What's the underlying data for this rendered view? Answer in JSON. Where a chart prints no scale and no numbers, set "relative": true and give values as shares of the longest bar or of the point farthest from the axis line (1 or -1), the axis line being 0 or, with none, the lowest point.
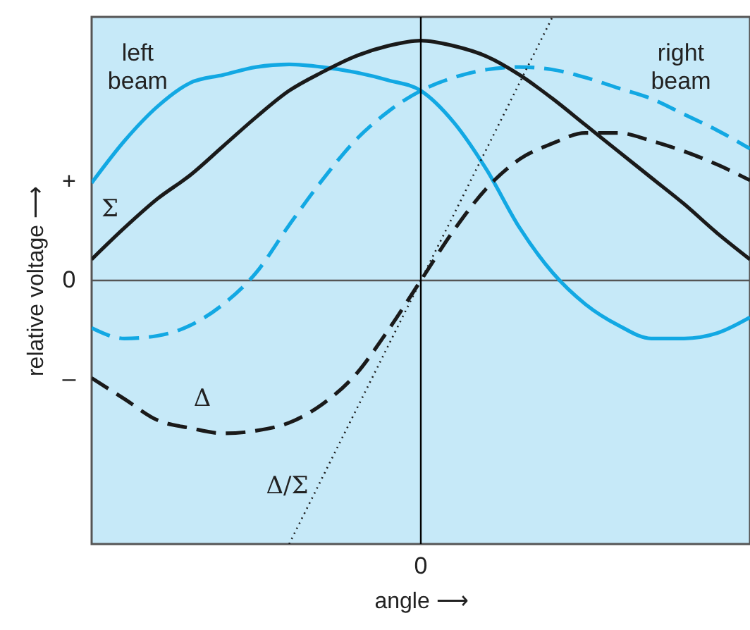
{
  "chart_data": {
    "type": "line",
    "relative": true,
    "xlabel": "angle ⟶",
    "ylabel": "relative voltage ⟶",
    "grid": false,
    "legend": false,
    "categories": [
      null,
      null,
      null,
      null,
      null,
      null,
      null,
      null,
      null,
      null,
      null,
      null,
      null,
      null,
      null,
      null,
      null,
      null,
      null,
      null,
      null
    ],
    "annotations": [
      "+",
      "0",
      "–",
      "0"
    ],
    "series": [
      {
        "name": "left beam",
        "color": "#12a8e3",
        "line_style": "solid",
        "values": [
          0.37,
          0.53,
          0.66,
          0.75,
          0.78,
          0.81,
          0.82,
          0.81,
          0.79,
          0.76,
          0.72,
          0.6,
          0.42,
          0.2,
          0.03,
          -0.09,
          -0.17,
          -0.22,
          -0.22,
          -0.2,
          -0.14
        ]
      },
      {
        "name": "right beam",
        "color": "#12a8e3",
        "line_style": "dashed",
        "values": [
          -0.18,
          -0.22,
          -0.21,
          -0.17,
          -0.09,
          0.03,
          0.21,
          0.38,
          0.53,
          0.64,
          0.72,
          0.77,
          0.8,
          0.81,
          0.8,
          0.77,
          0.73,
          0.69,
          0.63,
          0.57,
          0.5
        ]
      },
      {
        "name": "Σ",
        "color": "#1a1a1a",
        "line_style": "solid",
        "values": [
          0.08,
          0.2,
          0.31,
          0.4,
          0.51,
          0.62,
          0.72,
          0.79,
          0.85,
          0.89,
          0.91,
          0.89,
          0.85,
          0.78,
          0.69,
          0.59,
          0.49,
          0.39,
          0.29,
          0.18,
          0.08
        ]
      },
      {
        "name": "Δ",
        "color": "#1a1a1a",
        "line_style": "dashed",
        "values": [
          -0.37,
          -0.45,
          -0.53,
          -0.56,
          -0.58,
          -0.57,
          -0.54,
          -0.47,
          -0.36,
          -0.19,
          0,
          0.19,
          0.35,
          0.46,
          0.52,
          0.56,
          0.56,
          0.53,
          0.49,
          0.44,
          0.38
        ]
      },
      {
        "name": "Δ/Σ",
        "color": "#1a1a1a",
        "line_style": "dotted",
        "values": [
          null,
          null,
          null,
          null,
          null,
          null,
          -1,
          -0.75,
          -0.5,
          -0.25,
          0,
          0.25,
          0.5,
          0.75,
          1,
          null,
          null,
          null,
          null,
          null,
          null
        ]
      }
    ]
  }
}
